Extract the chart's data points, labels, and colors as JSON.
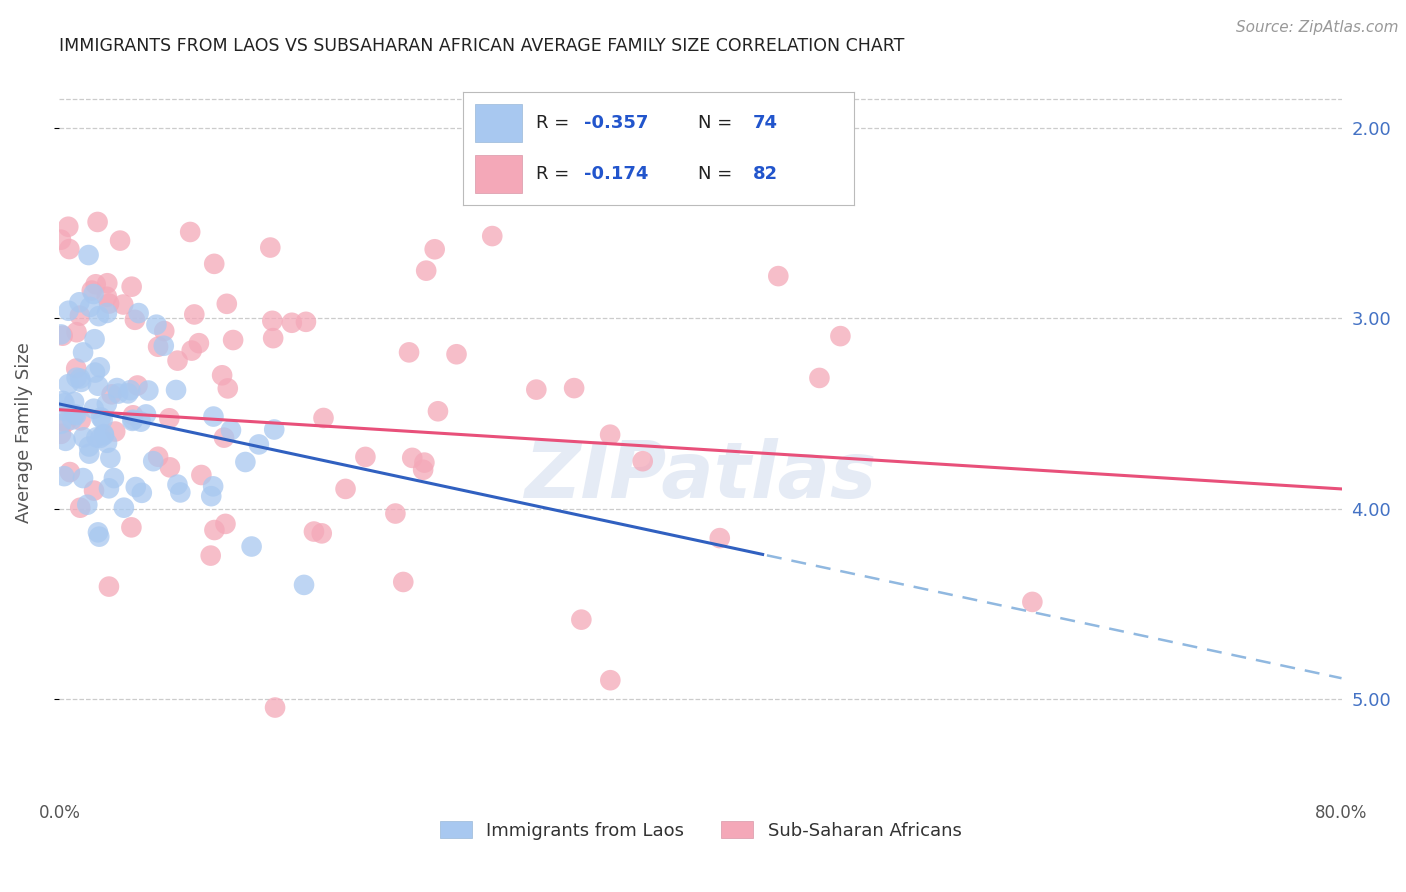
{
  "title": "IMMIGRANTS FROM LAOS VS SUBSAHARAN AFRICAN AVERAGE FAMILY SIZE CORRELATION CHART",
  "source": "Source: ZipAtlas.com",
  "ylabel": "Average Family Size",
  "xlim": [
    0.0,
    0.8
  ],
  "ylim": [
    1.5,
    5.3
  ],
  "yticks": [
    2.0,
    3.0,
    4.0,
    5.0
  ],
  "xticks": [
    0.0,
    0.1,
    0.2,
    0.3,
    0.4,
    0.5,
    0.6,
    0.7,
    0.8
  ],
  "xtick_labels": [
    "0.0%",
    "",
    "",
    "",
    "",
    "",
    "",
    "",
    "80.0%"
  ],
  "right_ytick_labels": [
    "5.00",
    "4.00",
    "3.00",
    "2.00"
  ],
  "watermark": "ZIPatlas",
  "series1_color": "#a8c8f0",
  "series2_color": "#f4a8b8",
  "trendline1_color": "#3060c0",
  "trendline2_color": "#e8507a",
  "trendline1_dashed_color": "#90b8e0",
  "background_color": "#ffffff",
  "grid_color": "#cccccc",
  "title_color": "#222222",
  "right_axis_color": "#4472c4",
  "seed1": 7,
  "seed2": 99,
  "n1": 74,
  "n2": 82,
  "r1": -0.357,
  "r2": -0.174,
  "legend_r1": "-0.357",
  "legend_r2": "-0.174",
  "legend_n1": "74",
  "legend_n2": "82",
  "legend_label1": "Immigrants from Laos",
  "legend_label2": "Sub-Saharan Africans"
}
